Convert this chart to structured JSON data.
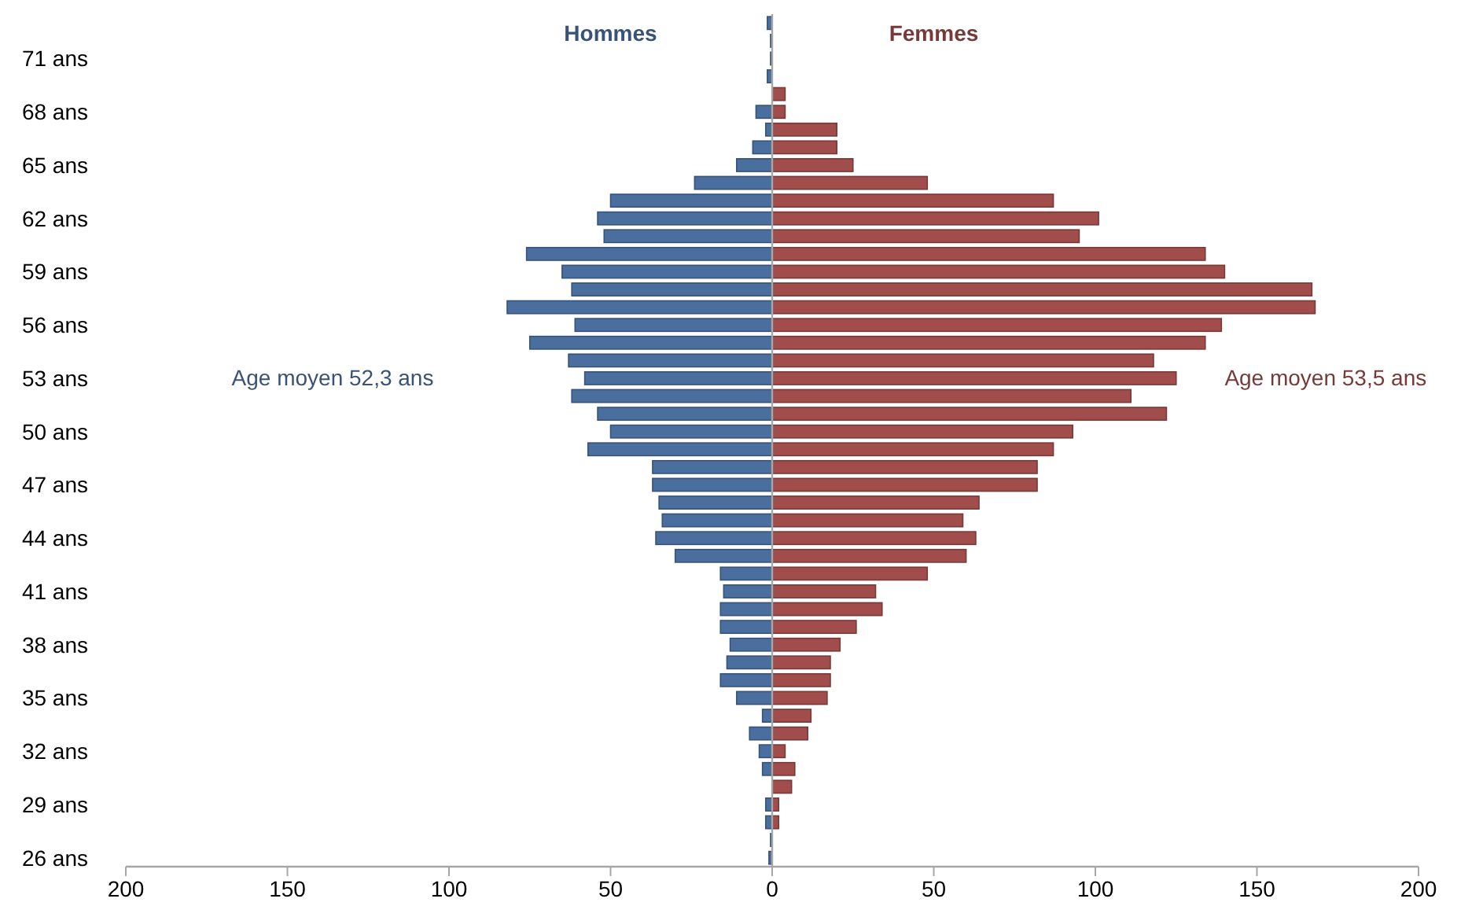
{
  "chart_data": {
    "type": "bar",
    "orientation": "horizontal",
    "stacked": true,
    "categories": [
      null,
      null,
      "71 ans",
      null,
      null,
      "68 ans",
      null,
      null,
      "65 ans",
      null,
      null,
      "62 ans",
      null,
      null,
      "59 ans",
      null,
      null,
      "56 ans",
      null,
      null,
      "53 ans",
      null,
      null,
      "50 ans",
      null,
      null,
      "47 ans",
      null,
      null,
      "44 ans",
      null,
      null,
      "41 ans",
      null,
      null,
      "38 ans",
      null,
      null,
      "35 ans",
      null,
      null,
      "32 ans",
      null,
      null,
      "29 ans",
      null,
      null,
      "26 ans"
    ],
    "series": [
      {
        "name": "Hommes",
        "color": "#4a6f9e",
        "values": [
          -1.5,
          -0.5,
          -0.5,
          -1.5,
          0,
          -5,
          -2,
          -6,
          -11,
          -24,
          -50,
          -54,
          -52,
          -76,
          -65,
          -62,
          -82,
          -61,
          -75,
          -63,
          -58,
          -62,
          -54,
          -50,
          -57,
          -37,
          -37,
          -35,
          -34,
          -36,
          -30,
          -16,
          -15,
          -16,
          -16,
          -13,
          -14,
          -16,
          -11,
          -3,
          -7,
          -4,
          -3,
          0,
          -2,
          -2,
          -0.5,
          -1
        ]
      },
      {
        "name": "Femmes",
        "color": "#a04d4b",
        "values": [
          0,
          0,
          0,
          0,
          4,
          4,
          20,
          20,
          25,
          48,
          87,
          101,
          95,
          134,
          140,
          167,
          168,
          139,
          134,
          118,
          125,
          111,
          122,
          93,
          87,
          82,
          82,
          64,
          59,
          63,
          60,
          48,
          32,
          34,
          26,
          21,
          18,
          18,
          17,
          12,
          11,
          4,
          7,
          6,
          2,
          2,
          0,
          0
        ]
      }
    ],
    "xlim": [
      -200,
      200
    ],
    "xticks": [
      {
        "value": -200,
        "label": "200"
      },
      {
        "value": -150,
        "label": "150"
      },
      {
        "value": -100,
        "label": "100"
      },
      {
        "value": -50,
        "label": "50"
      },
      0,
      50,
      100,
      150,
      200
    ],
    "annotations": [
      "Age moyen 52,3 ans",
      "Age moyen 53,5 ans"
    ],
    "legend": false
  }
}
